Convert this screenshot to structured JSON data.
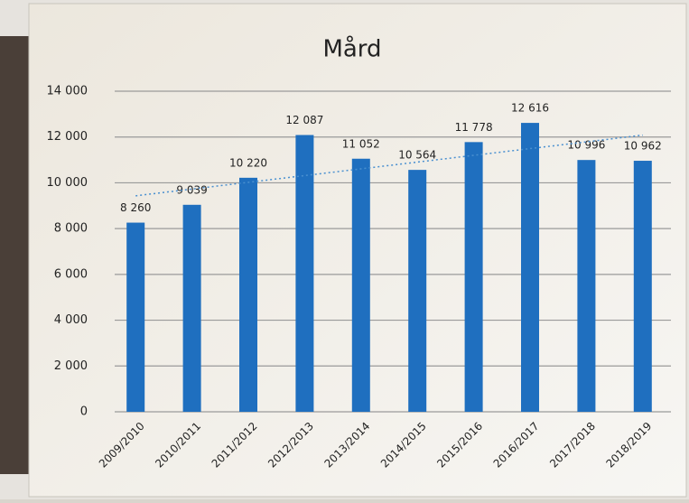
{
  "chart_data": {
    "type": "bar",
    "title": "Mård",
    "categories": [
      "2009/2010",
      "2010/2011",
      "2011/2012",
      "2012/2013",
      "2013/2014",
      "2014/2015",
      "2015/2016",
      "2016/2017",
      "2017/2018",
      "2018/2019"
    ],
    "values": [
      8260,
      9039,
      10220,
      12087,
      11052,
      10564,
      11778,
      12616,
      10996,
      10962
    ],
    "value_labels": [
      "8 260",
      "9 039",
      "10 220",
      "12 087",
      "11 052",
      "10 564",
      "11 778",
      "12 616",
      "10 996",
      "10 962"
    ],
    "color": "#1f6fbf",
    "ylim": [
      0,
      14000
    ],
    "yticks": [
      0,
      {
        "value": 2000,
        "label": "2 000"
      },
      {
        "value": 4000,
        "label": "4 000"
      },
      {
        "value": 6000,
        "label": "6 000"
      },
      {
        "value": 8000,
        "label": "8 000"
      },
      {
        "value": 10000,
        "label": "10 000"
      },
      {
        "value": 12000,
        "label": "12 000"
      },
      {
        "value": 14000,
        "label": "14 000"
      }
    ],
    "grid": true,
    "trendline": true,
    "trendline_color": "#4a90d0"
  }
}
